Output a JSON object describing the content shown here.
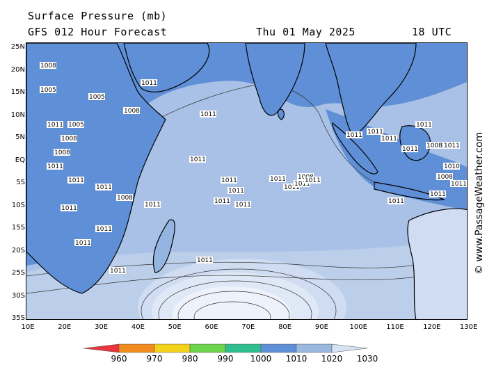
{
  "header": {
    "line1": "Surface Pressure (mb)",
    "line2": "GFS 012 Hour Forecast",
    "date": "Thu 01 May 2025",
    "time": "18 UTC"
  },
  "axes": {
    "lat_labels": [
      "25N",
      "20N",
      "15N",
      "10N",
      "5N",
      "EQ",
      "5S",
      "10S",
      "15S",
      "20S",
      "25S",
      "30S",
      "35S"
    ],
    "lon_labels": [
      "10E",
      "20E",
      "30E",
      "40E",
      "50E",
      "60E",
      "70E",
      "80E",
      "90E",
      "100E",
      "110E",
      "120E",
      "130E"
    ]
  },
  "isobar_labels": [
    "1008",
    "1005",
    "1011",
    "1010"
  ],
  "legend": {
    "labels": [
      "960",
      "970",
      "980",
      "990",
      "1000",
      "1010",
      "1020",
      "1030"
    ],
    "colors": [
      "#e8343a",
      "#f28c1c",
      "#f2d21a",
      "#6bd44a",
      "#2fbf8f",
      "#5f8fd6",
      "#9bb8e0",
      "#d7e3f3"
    ]
  },
  "watermark": "© www.PassageWeather.com",
  "colors": {
    "band_1010": "#5f8fd6",
    "band_1015": "#94b4e1",
    "band_1020": "#a9c1e6",
    "band_1025": "#cfdcf2",
    "band_1030": "#eef3fb",
    "land_outline": "#000000"
  }
}
